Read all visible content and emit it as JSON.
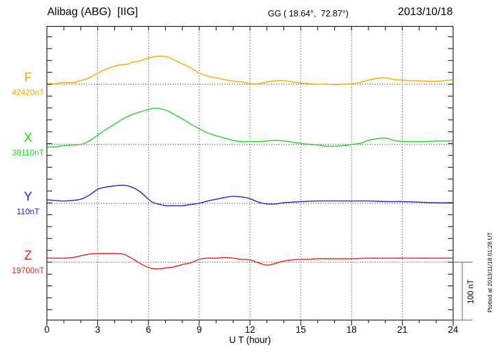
{
  "header": {
    "station": "Alibag (ABG)  [IIG]",
    "coordinates": "GG ( 18.64°,  72.87°)",
    "date": "2013/10/18"
  },
  "footer": {
    "xlabel": "U T (hour)",
    "scale_label": "100 nT",
    "plotted_note": "Plotted at 2013/11/18 01:28 UT"
  },
  "chart_data": {
    "type": "line",
    "title": "Alibag (ABG) [IIG] magnetogram",
    "x_unit": "UT hour",
    "x_range": [
      0,
      24
    ],
    "x_ticks": [
      0,
      3,
      6,
      9,
      12,
      15,
      18,
      21,
      24
    ],
    "grid_hours": [
      3,
      6,
      9,
      12,
      15,
      18,
      21
    ],
    "grid": "dotted vertical lines every 3 h; dotted horizontal baseline per component",
    "scale_bar": {
      "label": "100 nT",
      "nT": 100
    },
    "y_unit": "nT offset from component baseline",
    "series": [
      {
        "label": "F",
        "baseline_value": "42420nT",
        "color": "#ffa500",
        "points": [
          [
            0,
            0
          ],
          [
            0.5,
            1
          ],
          [
            1,
            3
          ],
          [
            1.5,
            3
          ],
          [
            2,
            6
          ],
          [
            2.5,
            11
          ],
          [
            3,
            19
          ],
          [
            3.5,
            26
          ],
          [
            4,
            31
          ],
          [
            4.3,
            33
          ],
          [
            4.7,
            34
          ],
          [
            5,
            37
          ],
          [
            5.5,
            40
          ],
          [
            6,
            45
          ],
          [
            6.5,
            48
          ],
          [
            6.9,
            48
          ],
          [
            7.2,
            46
          ],
          [
            7.5,
            42
          ],
          [
            8,
            35
          ],
          [
            8.5,
            28
          ],
          [
            9,
            19
          ],
          [
            9.5,
            14
          ],
          [
            10,
            11
          ],
          [
            10.5,
            8
          ],
          [
            11,
            5
          ],
          [
            11.5,
            4
          ],
          [
            12,
            1
          ],
          [
            12.5,
            1
          ],
          [
            13,
            4
          ],
          [
            13.5,
            6
          ],
          [
            14,
            6
          ],
          [
            14.5,
            4
          ],
          [
            15,
            2
          ],
          [
            15.5,
            1
          ],
          [
            16,
            0
          ],
          [
            16.5,
            0
          ],
          [
            17,
            -1
          ],
          [
            17.5,
            0
          ],
          [
            18,
            1
          ],
          [
            18.5,
            3
          ],
          [
            19,
            7
          ],
          [
            19.5,
            10
          ],
          [
            20,
            11
          ],
          [
            20.5,
            8
          ],
          [
            21,
            7
          ],
          [
            21.5,
            6
          ],
          [
            22,
            6
          ],
          [
            22.5,
            5
          ],
          [
            23,
            5
          ],
          [
            23.5,
            6
          ],
          [
            24,
            8
          ]
        ]
      },
      {
        "label": "X",
        "baseline_value": "38110nT",
        "color": "#22d422",
        "points": [
          [
            0,
            -5
          ],
          [
            0.5,
            -4
          ],
          [
            1,
            -2
          ],
          [
            1.5,
            -1
          ],
          [
            2,
            0
          ],
          [
            2.5,
            6
          ],
          [
            3,
            16
          ],
          [
            3.5,
            26
          ],
          [
            4,
            35
          ],
          [
            4.5,
            44
          ],
          [
            5,
            51
          ],
          [
            5.5,
            56
          ],
          [
            6,
            60
          ],
          [
            6.3,
            62
          ],
          [
            6.6,
            62
          ],
          [
            6.9,
            60
          ],
          [
            7.2,
            57
          ],
          [
            7.5,
            52
          ],
          [
            8,
            44
          ],
          [
            8.5,
            35
          ],
          [
            9,
            27
          ],
          [
            9.5,
            20
          ],
          [
            10,
            15
          ],
          [
            10.5,
            11
          ],
          [
            11,
            7
          ],
          [
            11.5,
            5
          ],
          [
            12,
            5
          ],
          [
            12.5,
            5
          ],
          [
            13,
            6
          ],
          [
            13.5,
            7
          ],
          [
            14,
            6
          ],
          [
            14.5,
            4
          ],
          [
            15,
            2
          ],
          [
            15.5,
            0
          ],
          [
            16,
            -1
          ],
          [
            16.5,
            -3
          ],
          [
            17,
            -3
          ],
          [
            17.5,
            -2
          ],
          [
            18,
            0
          ],
          [
            18.5,
            2
          ],
          [
            19,
            7
          ],
          [
            19.5,
            10
          ],
          [
            20,
            11
          ],
          [
            20.5,
            7
          ],
          [
            21,
            5
          ],
          [
            21.5,
            5
          ],
          [
            22,
            5
          ],
          [
            22.5,
            5
          ],
          [
            23,
            6
          ],
          [
            23.5,
            6
          ],
          [
            24,
            6
          ]
        ]
      },
      {
        "label": "Y",
        "baseline_value": "110nT",
        "color": "#2222cc",
        "points": [
          [
            0,
            6
          ],
          [
            0.5,
            5
          ],
          [
            1,
            4
          ],
          [
            1.5,
            5
          ],
          [
            2,
            7
          ],
          [
            2.5,
            14
          ],
          [
            3,
            24
          ],
          [
            3.5,
            28
          ],
          [
            4,
            30
          ],
          [
            4.5,
            31
          ],
          [
            5,
            28
          ],
          [
            5.5,
            20
          ],
          [
            6,
            7
          ],
          [
            6.3,
            1
          ],
          [
            6.7,
            -2
          ],
          [
            7,
            -4
          ],
          [
            7.5,
            -4
          ],
          [
            8,
            -4
          ],
          [
            8.5,
            -2
          ],
          [
            9,
            0
          ],
          [
            9.5,
            4
          ],
          [
            10,
            7
          ],
          [
            10.5,
            10
          ],
          [
            11,
            12
          ],
          [
            11.5,
            11
          ],
          [
            12,
            8
          ],
          [
            12.5,
            2
          ],
          [
            13,
            -1
          ],
          [
            13.5,
            -1
          ],
          [
            14,
            1
          ],
          [
            14.5,
            2
          ],
          [
            15,
            3
          ],
          [
            16,
            4
          ],
          [
            17,
            4
          ],
          [
            18,
            4
          ],
          [
            19,
            4
          ],
          [
            20,
            3
          ],
          [
            21,
            3
          ],
          [
            22,
            2
          ],
          [
            23,
            1
          ],
          [
            24,
            1
          ]
        ]
      },
      {
        "label": "Z",
        "baseline_value": "19700nT",
        "color": "#e62020",
        "points": [
          [
            0,
            7
          ],
          [
            0.5,
            7
          ],
          [
            1,
            7
          ],
          [
            1.5,
            8
          ],
          [
            2,
            11
          ],
          [
            2.5,
            14
          ],
          [
            3,
            15
          ],
          [
            3.5,
            15
          ],
          [
            4,
            15
          ],
          [
            4.5,
            14
          ],
          [
            5,
            7
          ],
          [
            5.5,
            -2
          ],
          [
            6,
            -9
          ],
          [
            6.3,
            -11
          ],
          [
            6.7,
            -11
          ],
          [
            7,
            -10
          ],
          [
            7.5,
            -8
          ],
          [
            8,
            -4
          ],
          [
            8.5,
            -1
          ],
          [
            9,
            5
          ],
          [
            9.5,
            7
          ],
          [
            10,
            7
          ],
          [
            10.5,
            8
          ],
          [
            11,
            7
          ],
          [
            11.5,
            5
          ],
          [
            12,
            4
          ],
          [
            12.5,
            -1
          ],
          [
            13,
            -5
          ],
          [
            13.5,
            -2
          ],
          [
            14,
            2
          ],
          [
            14.5,
            4
          ],
          [
            15,
            5
          ],
          [
            15.5,
            5
          ],
          [
            16,
            6
          ],
          [
            17,
            6
          ],
          [
            18,
            6
          ],
          [
            19,
            7
          ],
          [
            20,
            7
          ],
          [
            21,
            7
          ],
          [
            22,
            7
          ],
          [
            23,
            7
          ],
          [
            24,
            7
          ]
        ]
      }
    ]
  },
  "colors": {
    "axis": "#000000",
    "grid": "#000000",
    "scale_bar": "#808080",
    "background": "#ffffff"
  }
}
